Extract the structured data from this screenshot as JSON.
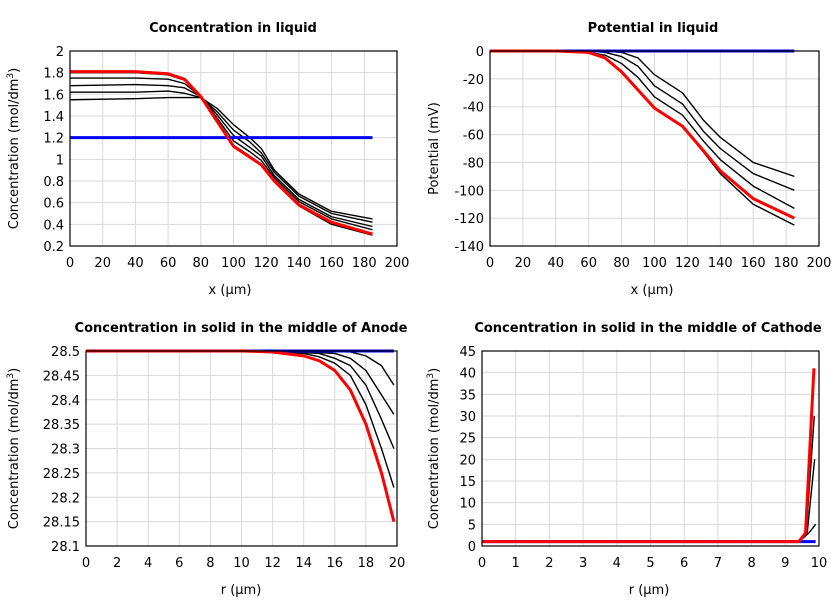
{
  "chart_data": [
    {
      "type": "line",
      "title": "Concentration in liquid",
      "xlabel": "x (µm)",
      "ylabel": "Concentration (mol/dm",
      "ylabel_sup": "3",
      "ylabel_end": ")",
      "xlim": [
        0,
        200
      ],
      "ylim": [
        0.2,
        2
      ],
      "xticks": [
        0,
        20,
        40,
        60,
        80,
        100,
        120,
        140,
        160,
        180,
        200
      ],
      "yticks": [
        0.2,
        0.4,
        0.6,
        0.8,
        1,
        1.2,
        1.4,
        1.6,
        1.8,
        2
      ],
      "grid": true,
      "series": [
        {
          "color": "#000000",
          "x": [
            0,
            40,
            60,
            70,
            80,
            90,
            100,
            110,
            117,
            125,
            140,
            160,
            185
          ],
          "y": [
            1.55,
            1.56,
            1.57,
            1.57,
            1.57,
            1.47,
            1.32,
            1.2,
            1.1,
            0.9,
            0.68,
            0.52,
            0.45
          ]
        },
        {
          "color": "#000000",
          "x": [
            0,
            40,
            60,
            70,
            80,
            90,
            100,
            110,
            117,
            125,
            140,
            160,
            185
          ],
          "y": [
            1.62,
            1.62,
            1.63,
            1.61,
            1.57,
            1.44,
            1.27,
            1.16,
            1.06,
            0.88,
            0.66,
            0.5,
            0.42
          ]
        },
        {
          "color": "#000000",
          "x": [
            0,
            40,
            60,
            70,
            80,
            90,
            100,
            110,
            117,
            125,
            140,
            160,
            185
          ],
          "y": [
            1.68,
            1.69,
            1.68,
            1.66,
            1.58,
            1.41,
            1.22,
            1.11,
            1.03,
            0.85,
            0.63,
            0.47,
            0.38
          ]
        },
        {
          "color": "#000000",
          "x": [
            0,
            40,
            60,
            70,
            80,
            90,
            100,
            110,
            117,
            125,
            140,
            160,
            185
          ],
          "y": [
            1.75,
            1.75,
            1.74,
            1.7,
            1.58,
            1.38,
            1.17,
            1.07,
            0.99,
            0.83,
            0.61,
            0.45,
            0.35
          ]
        },
        {
          "color": "#000000",
          "x": [
            0,
            40,
            60,
            70,
            80,
            90,
            100,
            110,
            117,
            125,
            140,
            160,
            185
          ],
          "y": [
            1.8,
            1.8,
            1.78,
            1.73,
            1.58,
            1.36,
            1.13,
            1.03,
            0.95,
            0.79,
            0.57,
            0.4,
            0.3
          ]
        },
        {
          "color": "#0000ff",
          "x": [
            0,
            185
          ],
          "y": [
            1.2,
            1.2
          ]
        },
        {
          "color": "#ff0000",
          "x": [
            0,
            40,
            60,
            70,
            80,
            90,
            100,
            110,
            117,
            125,
            140,
            160,
            185
          ],
          "y": [
            1.81,
            1.81,
            1.79,
            1.74,
            1.58,
            1.35,
            1.12,
            1.02,
            0.95,
            0.8,
            0.58,
            0.42,
            0.31
          ]
        }
      ]
    },
    {
      "type": "line",
      "title": "Potential in liquid",
      "xlabel": "x (µm)",
      "ylabel": "Potential (mV)",
      "xlim": [
        0,
        200
      ],
      "ylim": [
        -140,
        0
      ],
      "xticks": [
        0,
        20,
        40,
        60,
        80,
        100,
        120,
        140,
        160,
        180,
        200
      ],
      "yticks": [
        -140,
        -120,
        -100,
        -80,
        -60,
        -40,
        -20,
        0
      ],
      "grid": true,
      "series": [
        {
          "color": "#000000",
          "x": [
            0,
            40,
            60,
            70,
            80,
            90,
            100,
            117,
            130,
            140,
            160,
            185
          ],
          "y": [
            0,
            0,
            0,
            0,
            -1,
            -5,
            -17,
            -30,
            -50,
            -62,
            -80,
            -90
          ]
        },
        {
          "color": "#000000",
          "x": [
            0,
            40,
            60,
            70,
            80,
            90,
            100,
            117,
            130,
            140,
            160,
            185
          ],
          "y": [
            0,
            0,
            0,
            -1,
            -4,
            -11,
            -25,
            -38,
            -58,
            -70,
            -88,
            -100
          ]
        },
        {
          "color": "#000000",
          "x": [
            0,
            40,
            60,
            70,
            80,
            90,
            100,
            117,
            130,
            140,
            160,
            185
          ],
          "y": [
            0,
            0,
            -1,
            -3,
            -9,
            -19,
            -33,
            -46,
            -65,
            -78,
            -97,
            -113
          ]
        },
        {
          "color": "#000000",
          "x": [
            0,
            40,
            60,
            70,
            80,
            90,
            100,
            117,
            130,
            140,
            160,
            185
          ],
          "y": [
            0,
            0,
            -1,
            -5,
            -15,
            -28,
            -41,
            -54,
            -73,
            -88,
            -110,
            -125
          ]
        },
        {
          "color": "#0000ff",
          "x": [
            0,
            185
          ],
          "y": [
            0,
            0
          ]
        },
        {
          "color": "#ff0000",
          "x": [
            0,
            40,
            60,
            70,
            80,
            90,
            100,
            117,
            130,
            140,
            160,
            185
          ],
          "y": [
            0,
            0,
            -1,
            -5,
            -15,
            -28,
            -41,
            -54,
            -72,
            -86,
            -106,
            -120
          ]
        }
      ]
    },
    {
      "type": "line",
      "title": "Concentration in solid in the middle of Anode",
      "xlabel": "r (µm)",
      "ylabel": "Concentration (mol/dm",
      "ylabel_sup": "3",
      "ylabel_end": ")",
      "xlim": [
        0,
        20
      ],
      "ylim": [
        28.1,
        28.5
      ],
      "xticks": [
        0,
        2,
        4,
        6,
        8,
        10,
        12,
        14,
        16,
        18,
        20
      ],
      "yticks": [
        28.1,
        28.15,
        28.2,
        28.25,
        28.3,
        28.35,
        28.4,
        28.45,
        28.5
      ],
      "grid": true,
      "series": [
        {
          "color": "#000000",
          "x": [
            0,
            14,
            17,
            18,
            19,
            19.8
          ],
          "y": [
            28.5,
            28.5,
            28.498,
            28.49,
            28.47,
            28.43
          ]
        },
        {
          "color": "#000000",
          "x": [
            0,
            13,
            16,
            17,
            18,
            19,
            19.8
          ],
          "y": [
            28.5,
            28.5,
            28.495,
            28.485,
            28.46,
            28.41,
            28.37
          ]
        },
        {
          "color": "#000000",
          "x": [
            0,
            12,
            15,
            16,
            17,
            18,
            19,
            19.8
          ],
          "y": [
            28.5,
            28.5,
            28.495,
            28.485,
            28.47,
            28.43,
            28.36,
            28.3
          ]
        },
        {
          "color": "#000000",
          "x": [
            0,
            11,
            14,
            15,
            16,
            17,
            18,
            19,
            19.8
          ],
          "y": [
            28.5,
            28.5,
            28.495,
            28.488,
            28.475,
            28.45,
            28.39,
            28.3,
            28.22
          ]
        },
        {
          "color": "#0000ff",
          "x": [
            0,
            19.8
          ],
          "y": [
            28.5,
            28.5
          ]
        },
        {
          "color": "#ff0000",
          "x": [
            0,
            10,
            12,
            14,
            15,
            16,
            17,
            18,
            19,
            19.8
          ],
          "y": [
            28.5,
            28.5,
            28.498,
            28.49,
            28.48,
            28.46,
            28.42,
            28.35,
            28.25,
            28.15
          ]
        }
      ]
    },
    {
      "type": "line",
      "title": "Concentration in solid in the middle of Cathode",
      "xlabel": "r (µm)",
      "ylabel": "Concentration (mol/dm",
      "ylabel_sup": "3",
      "ylabel_end": ")",
      "xlim": [
        0,
        10
      ],
      "ylim": [
        0,
        45
      ],
      "xticks": [
        0,
        1,
        2,
        3,
        4,
        5,
        6,
        7,
        8,
        9,
        10
      ],
      "yticks": [
        0,
        5,
        10,
        15,
        20,
        25,
        30,
        35,
        40,
        45
      ],
      "grid": true,
      "series": [
        {
          "color": "#000000",
          "x": [
            0,
            9.4,
            9.7,
            9.9
          ],
          "y": [
            1,
            1,
            3,
            5
          ]
        },
        {
          "color": "#000000",
          "x": [
            0,
            9.4,
            9.65,
            9.87
          ],
          "y": [
            1,
            1,
            3,
            20
          ]
        },
        {
          "color": "#000000",
          "x": [
            0,
            9.4,
            9.62,
            9.86
          ],
          "y": [
            1,
            1,
            3,
            30
          ]
        },
        {
          "color": "#0000ff",
          "x": [
            0,
            9.9
          ],
          "y": [
            1,
            1
          ]
        },
        {
          "color": "#ff0000",
          "x": [
            0,
            9.4,
            9.6,
            9.85
          ],
          "y": [
            1,
            1,
            3,
            41
          ]
        }
      ]
    }
  ]
}
